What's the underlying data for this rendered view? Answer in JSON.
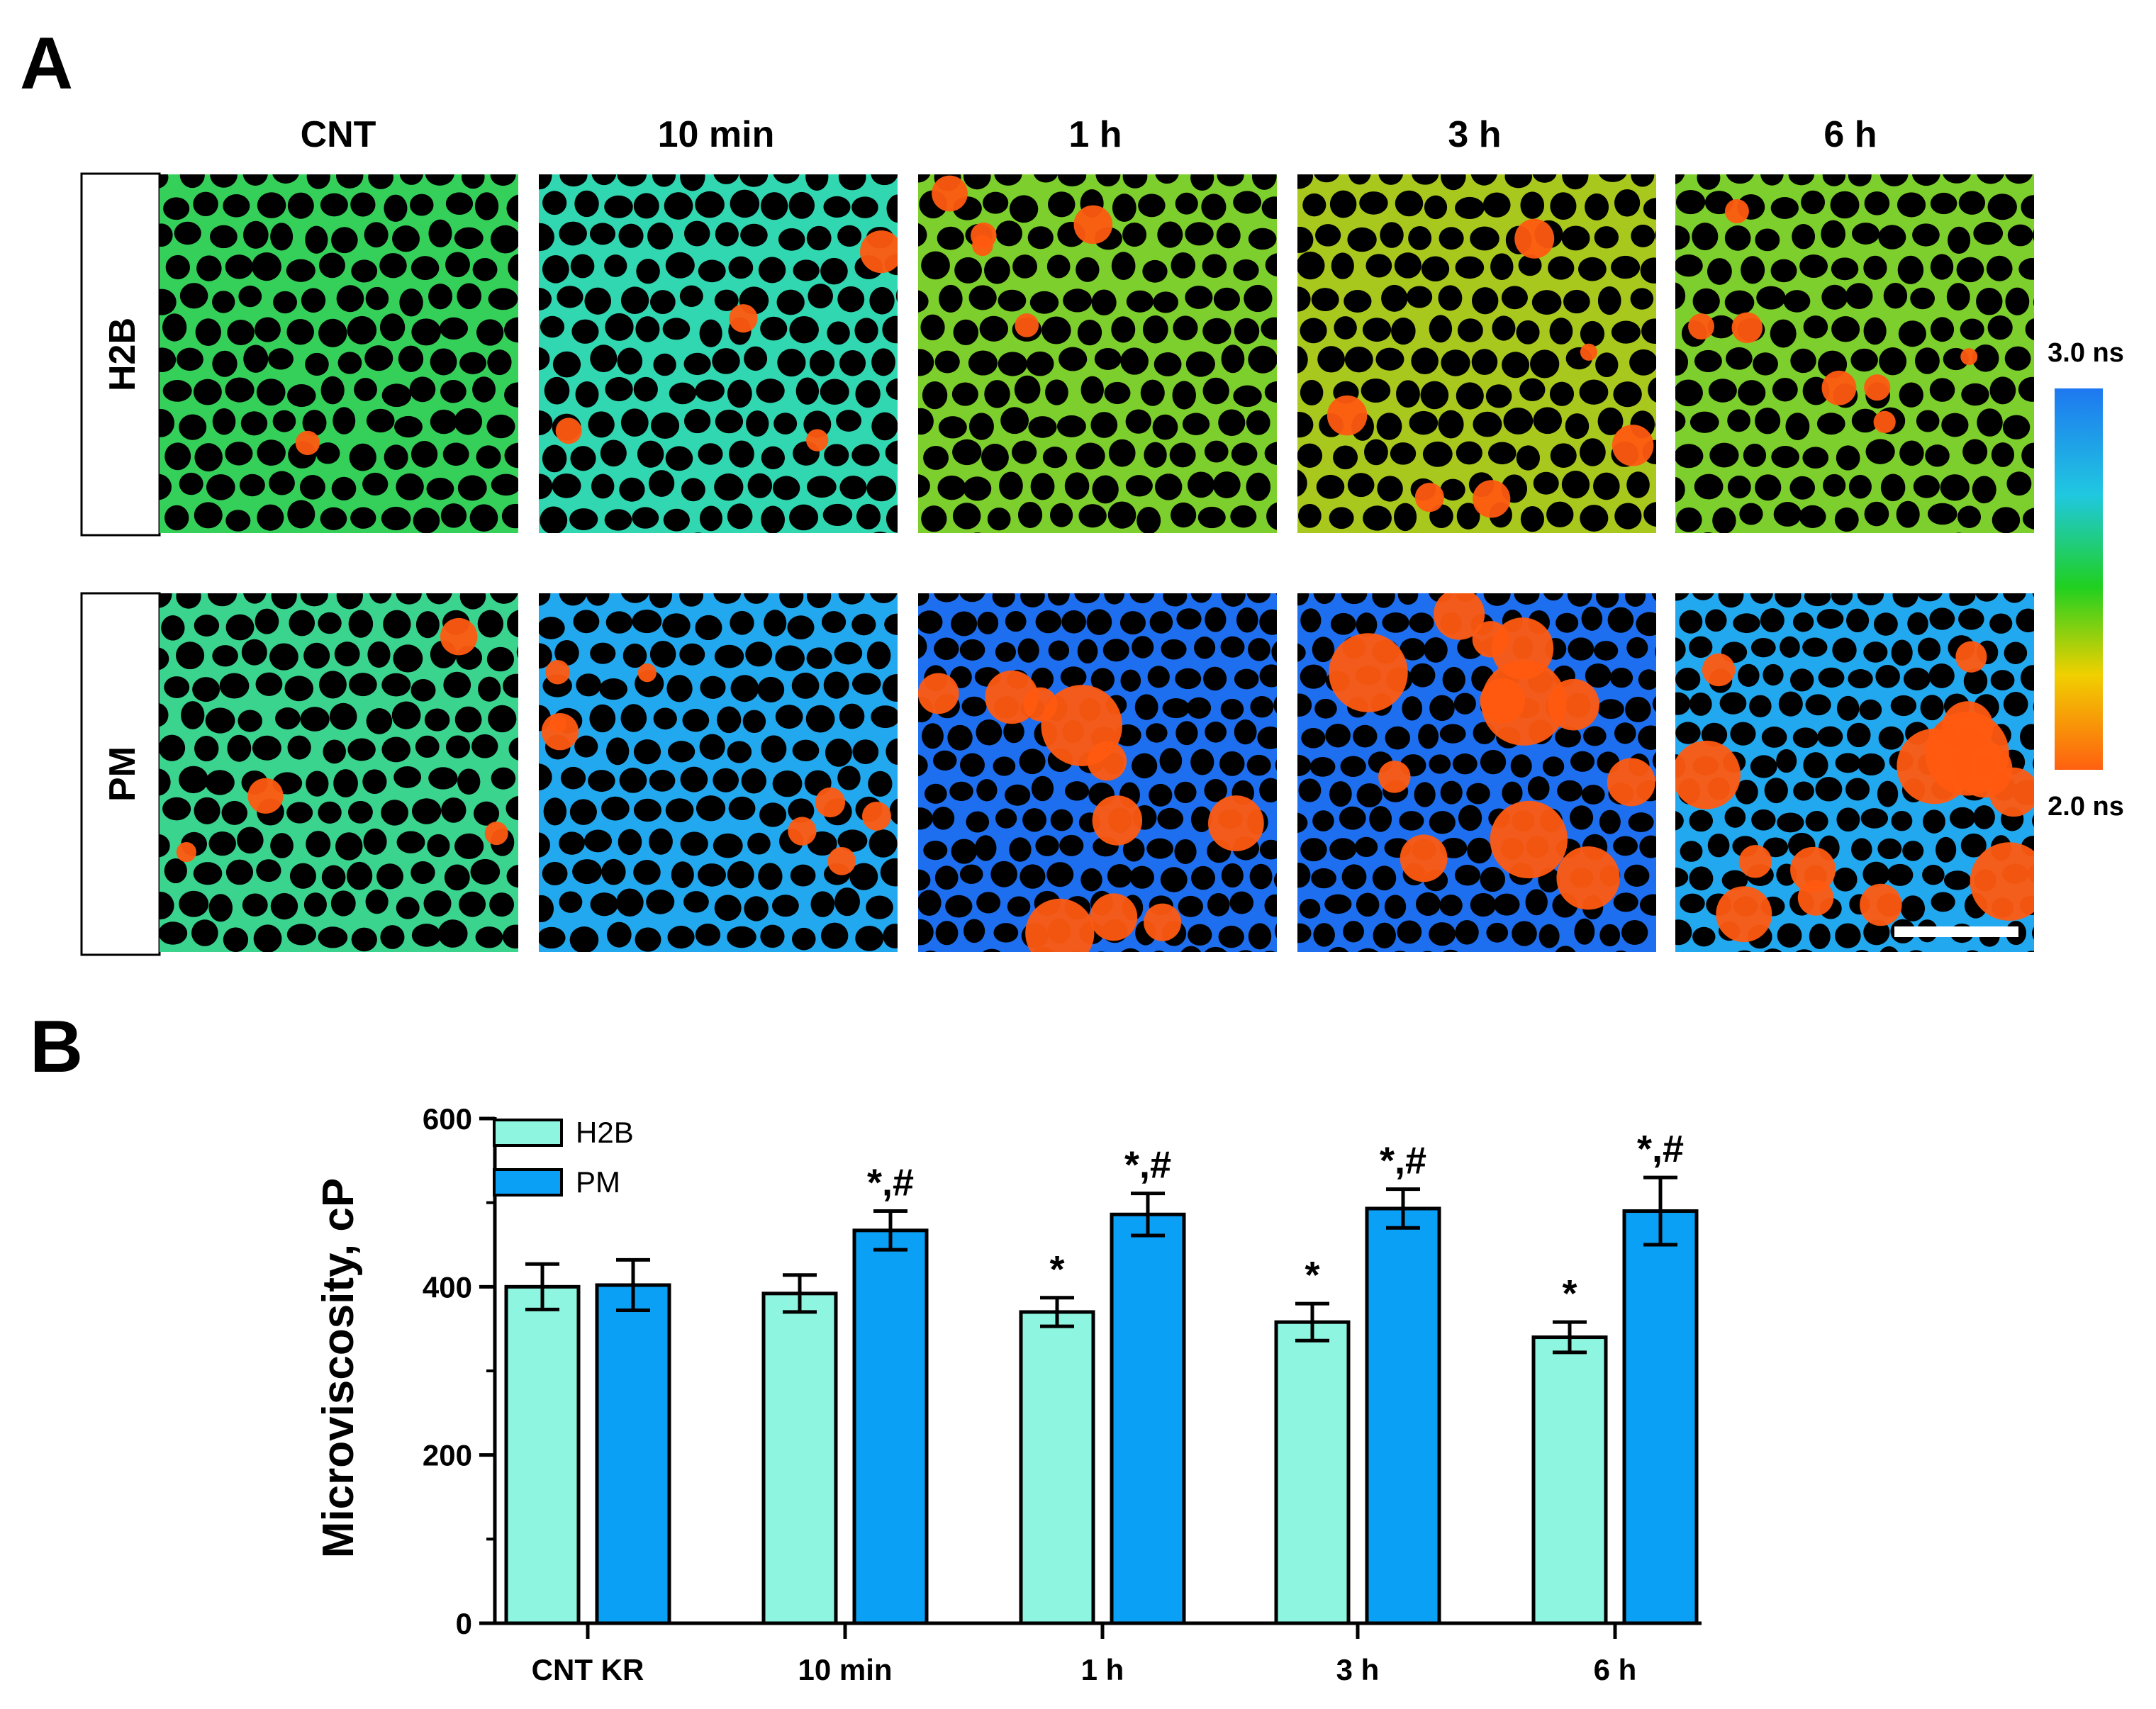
{
  "panel_a": {
    "letter": "A",
    "columns": [
      "CNT",
      "10 min",
      "1 h",
      "3 h",
      "6 h"
    ],
    "rows": [
      "H2B",
      "PM"
    ],
    "colorbar": {
      "top_label": "3.0 ns",
      "bottom_label": "2.0 ns",
      "colors": [
        "#1e78f0",
        "#20c8e0",
        "#20d020",
        "#f0d000",
        "#ff6010"
      ]
    },
    "image_colors": {
      "background": "#000000",
      "membrane": "#2fcf6a",
      "membrane_blue": "#1c7cf0",
      "hotspot": "#ff5a10"
    },
    "tint": {
      "H2B": [
        "green",
        "cyan-green",
        "green-orange",
        "orange-green",
        "green-orange"
      ],
      "PM": [
        "green-cyan",
        "blue-cyan",
        "blue",
        "blue",
        "blue-cyan"
      ]
    }
  },
  "panel_b": {
    "letter": "B"
  },
  "chart_data": {
    "type": "bar",
    "ylabel": "Microviscosity, cP",
    "xlabel": "",
    "categories": [
      "CNT KR",
      "10 min",
      "1 h",
      "3 h",
      "6 h"
    ],
    "ylim": [
      0,
      600
    ],
    "yticks": [
      0,
      200,
      400,
      600
    ],
    "series": [
      {
        "name": "H2B",
        "color": "#8ef5e0",
        "values": [
          400,
          392,
          370,
          358,
          340
        ],
        "errors": [
          27,
          22,
          17,
          22,
          18
        ],
        "annotations": [
          "",
          "",
          "*",
          "*",
          "*"
        ]
      },
      {
        "name": "PM",
        "color": "#0aa0f5",
        "values": [
          402,
          467,
          486,
          493,
          490
        ],
        "errors": [
          30,
          23,
          25,
          23,
          40
        ],
        "annotations": [
          "",
          "*,#",
          "*,#",
          "*,#",
          "*,#"
        ]
      }
    ],
    "legend_position": "top-left",
    "grid": false
  }
}
